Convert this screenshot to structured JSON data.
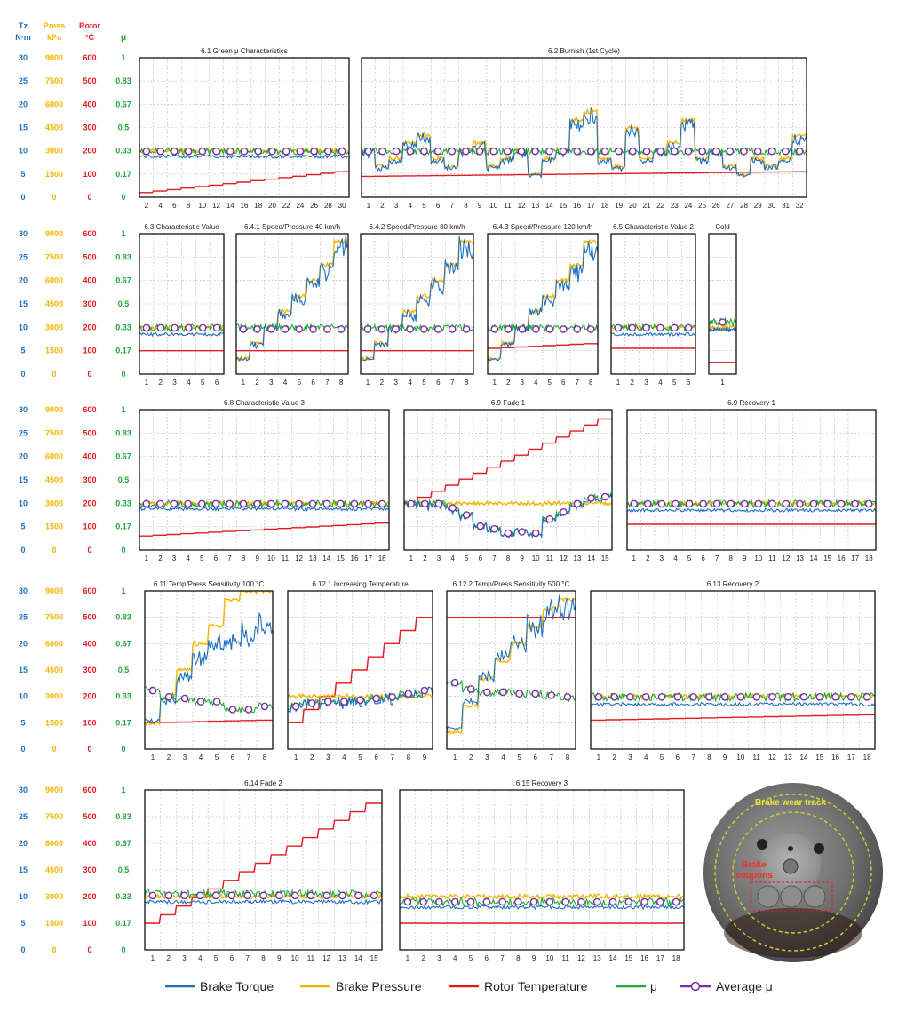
{
  "header": {
    "tz": [
      "Tz",
      "N·m"
    ],
    "press": [
      "Press",
      "kPa"
    ],
    "rotor": [
      "Rotor",
      "°C"
    ],
    "mu": "μ"
  },
  "colors": {
    "torque": "#1f6fbf",
    "pressure": "#f5b400",
    "temperature": "#e41a1c",
    "mu": "#22a83a",
    "avg_mu": "#7b2fa3",
    "grid": "#bdbdbd"
  },
  "axis_labels": {
    "tz": [
      "30",
      "25",
      "20",
      "15",
      "10",
      "5",
      "0"
    ],
    "press": [
      "9000",
      "7500",
      "6000",
      "4500",
      "3000",
      "1500",
      "0"
    ],
    "rotor": [
      "600",
      "500",
      "400",
      "300",
      "200",
      "100",
      "0"
    ],
    "mu": [
      "1",
      "0.83",
      "0.67",
      "0.5",
      "0.33",
      "0.17",
      "0"
    ]
  },
  "legend": [
    "Brake Torque",
    "Brake Pressure",
    "Rotor Temperature",
    "μ",
    "Average μ"
  ],
  "photo": {
    "track_label": "Brake wear track",
    "coupons_label": [
      "Brake",
      "coupons"
    ]
  },
  "chart_data": [
    {
      "type": "line",
      "title": "6.1 Green μ Characteristics",
      "categories": [
        "2",
        "4",
        "6",
        "8",
        "10",
        "12",
        "14",
        "16",
        "18",
        "20",
        "22",
        "24",
        "26",
        "28",
        "30"
      ],
      "press": 3000,
      "torque": 8.8,
      "mu": 0.33,
      "temp": [
        20,
        110
      ],
      "avg_mu": 0.33
    },
    {
      "type": "line",
      "title": "6.2 Burnish (1st Cycle)",
      "categories": [
        "1",
        "2",
        "3",
        "4",
        "5",
        "6",
        "7",
        "8",
        "9",
        "10",
        "11",
        "12",
        "13",
        "14",
        "15",
        "16",
        "17",
        "18",
        "19",
        "20",
        "21",
        "22",
        "23",
        "24",
        "25",
        "26",
        "27",
        "28",
        "29",
        "30",
        "31",
        "32"
      ],
      "press": [
        3000,
        2000,
        2500,
        3500,
        4000,
        2500,
        2000,
        3000,
        3500,
        2000,
        2500,
        3000,
        1500,
        2500,
        3000,
        5000,
        5500,
        2500,
        2000,
        4500,
        2500,
        3000,
        3500,
        5000,
        2500,
        3000,
        2000,
        1500,
        2500,
        2000,
        2500,
        4000
      ],
      "mu": 0.33,
      "temp": [
        90,
        110
      ],
      "avg_mu": 0.33
    },
    {
      "type": "line",
      "title": "6.3 Characteristic Value",
      "categories": [
        "1",
        "2",
        "3",
        "4",
        "5",
        "6"
      ],
      "press": 3000,
      "torque": 8.5,
      "mu": 0.33,
      "temp": [
        100,
        100
      ],
      "avg_mu": 0.33
    },
    {
      "type": "line",
      "title": "6.4.1 Speed/Pressure 40 km/h",
      "categories": [
        "1",
        "2",
        "3",
        "4",
        "5",
        "6",
        "7",
        "8"
      ],
      "press": [
        1000,
        2000,
        3000,
        4000,
        5000,
        6000,
        7000,
        8500
      ],
      "mu": 0.33,
      "temp": [
        100,
        100
      ],
      "avg_mu": 0.32
    },
    {
      "type": "line",
      "title": "6.4.2 Speed/Pressure 80 km/h",
      "categories": [
        "1",
        "2",
        "3",
        "4",
        "5",
        "6",
        "7",
        "8"
      ],
      "press": [
        1000,
        2000,
        3000,
        4000,
        5000,
        6000,
        7000,
        8500
      ],
      "mu": 0.33,
      "temp": [
        100,
        100
      ],
      "avg_mu": 0.32
    },
    {
      "type": "line",
      "title": "6.4.3 Speed/Pressure 120 km/h",
      "categories": [
        "1",
        "2",
        "3",
        "4",
        "5",
        "6",
        "7",
        "8"
      ],
      "press": [
        1000,
        2000,
        3000,
        4000,
        5000,
        6000,
        7000,
        8500
      ],
      "mu": 0.33,
      "temp": [
        110,
        130
      ],
      "avg_mu": 0.32
    },
    {
      "type": "line",
      "title": "6.5 Characteristic Value 2",
      "categories": [
        "1",
        "2",
        "3",
        "4",
        "5",
        "6"
      ],
      "press": 3000,
      "torque": 8.5,
      "mu": 0.33,
      "temp": [
        110,
        110
      ],
      "avg_mu": 0.33
    },
    {
      "type": "line",
      "title": "Cold",
      "categories": [
        "1"
      ],
      "press": 3000,
      "torque": 9.5,
      "mu": 0.37,
      "temp": [
        50,
        50
      ],
      "avg_mu": 0.37
    },
    {
      "type": "line",
      "title": "6.8 Characteristic Value 3",
      "categories": [
        "1",
        "2",
        "3",
        "4",
        "5",
        "6",
        "7",
        "8",
        "9",
        "10",
        "11",
        "12",
        "13",
        "14",
        "15",
        "16",
        "17",
        "18"
      ],
      "press": 3000,
      "torque": 8.8,
      "mu": 0.33,
      "temp": [
        60,
        115
      ],
      "avg_mu": 0.33
    },
    {
      "type": "line",
      "title": "6.9 Fade 1",
      "categories": [
        "1",
        "2",
        "3",
        "4",
        "5",
        "6",
        "7",
        "8",
        "9",
        "10",
        "11",
        "12",
        "13",
        "14",
        "15"
      ],
      "press": 3000,
      "temp": [
        200,
        560
      ],
      "avg_mu": [
        0.33,
        0.33,
        0.33,
        0.3,
        0.25,
        0.17,
        0.15,
        0.12,
        0.13,
        0.12,
        0.22,
        0.27,
        0.33,
        0.37,
        0.38
      ]
    },
    {
      "type": "line",
      "title": "6.9 Recovery 1",
      "categories": [
        "1",
        "2",
        "3",
        "4",
        "5",
        "6",
        "7",
        "8",
        "9",
        "10",
        "11",
        "12",
        "13",
        "14",
        "15",
        "16",
        "17",
        "18"
      ],
      "press": 3000,
      "torque": 8.5,
      "mu": 0.33,
      "temp": [
        110,
        110
      ],
      "avg_mu": 0.33
    },
    {
      "type": "line",
      "title": "6.11 Temp/Press Sensitivity 100 °C",
      "categories": [
        "1",
        "2",
        "3",
        "4",
        "5",
        "6",
        "7",
        "8"
      ],
      "press": [
        1500,
        3000,
        4500,
        6000,
        7000,
        8500,
        9000,
        9000
      ],
      "mu": 0.3,
      "temp": [
        100,
        110
      ],
      "avg_mu": [
        0.37,
        0.33,
        0.32,
        0.3,
        0.3,
        0.25,
        0.25,
        0.27
      ]
    },
    {
      "type": "line",
      "title": "6.12.1 Increasing Temperature",
      "categories": [
        "1",
        "2",
        "3",
        "4",
        "5",
        "6",
        "7",
        "8",
        "9"
      ],
      "press": 3000,
      "mu": 0.33,
      "temp": [
        100,
        500
      ],
      "avg_mu": [
        0.27,
        0.29,
        0.3,
        0.3,
        0.31,
        0.32,
        0.33,
        0.35,
        0.37
      ]
    },
    {
      "type": "line",
      "title": "6.12.2 Temp/Press Sensitivity 500 °C",
      "categories": [
        "1",
        "2",
        "3",
        "4",
        "5",
        "6",
        "7",
        "8"
      ],
      "press": [
        1000,
        2500,
        4000,
        5000,
        6000,
        7000,
        8000,
        8500
      ],
      "mu": 0.35,
      "temp": [
        500,
        500
      ],
      "avg_mu": [
        0.42,
        0.38,
        0.36,
        0.36,
        0.35,
        0.35,
        0.34,
        0.33
      ]
    },
    {
      "type": "line",
      "title": "6.13 Recovery 2",
      "categories": [
        "1",
        "2",
        "3",
        "4",
        "5",
        "6",
        "7",
        "8",
        "9",
        "10",
        "11",
        "12",
        "13",
        "14",
        "15",
        "16",
        "17",
        "18"
      ],
      "press": 3000,
      "torque": 8.5,
      "mu": 0.33,
      "temp": [
        110,
        130
      ],
      "avg_mu": 0.33
    },
    {
      "type": "line",
      "title": "6.14 Fade 2",
      "categories": [
        "1",
        "2",
        "3",
        "4",
        "5",
        "6",
        "7",
        "8",
        "9",
        "10",
        "11",
        "12",
        "13",
        "14",
        "15"
      ],
      "press": 3000,
      "torque": 9,
      "mu": 0.35,
      "temp": [
        100,
        550
      ],
      "avg_mu": 0.34
    },
    {
      "type": "line",
      "title": "6.15 Recovery 3",
      "categories": [
        "1",
        "2",
        "3",
        "4",
        "5",
        "6",
        "7",
        "8",
        "9",
        "10",
        "11",
        "12",
        "13",
        "14",
        "15",
        "16",
        "17",
        "18"
      ],
      "press": 3000,
      "torque": 8,
      "mu": 0.3,
      "temp": [
        100,
        100
      ],
      "avg_mu": 0.3
    }
  ]
}
